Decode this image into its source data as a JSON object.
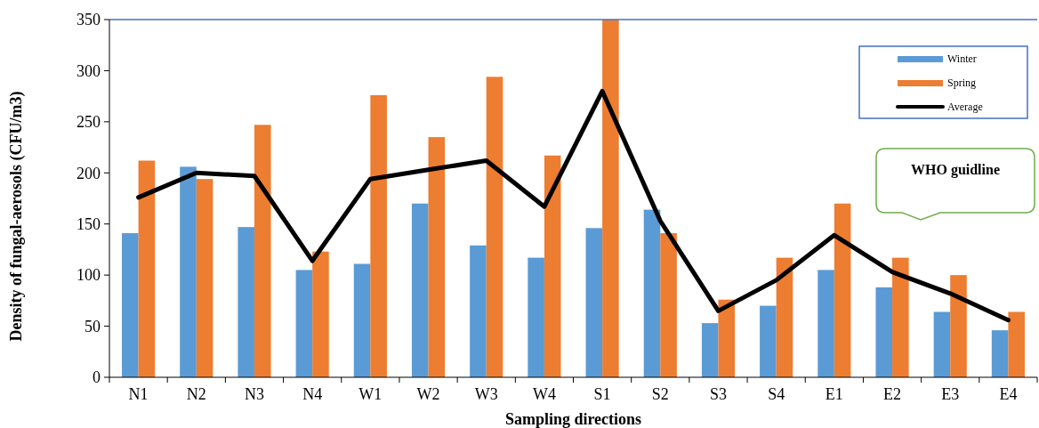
{
  "chart_data": {
    "type": "bar",
    "xlabel": "Sampling directions",
    "ylabel": "Density of fungal-aerosols (CFU/m3)",
    "categories": [
      "N1",
      "N2",
      "N3",
      "N4",
      "W1",
      "W2",
      "W3",
      "W4",
      "S1",
      "S2",
      "S3",
      "S4",
      "E1",
      "E2",
      "E3",
      "E4"
    ],
    "series": [
      {
        "name": "Winter",
        "color": "#5b9bd5",
        "values": [
          141,
          206,
          147,
          105,
          111,
          170,
          129,
          117,
          146,
          164,
          53,
          70,
          105,
          88,
          64,
          46
        ]
      },
      {
        "name": "Spring",
        "color": "#ed7d31",
        "values": [
          212,
          194,
          247,
          123,
          276,
          235,
          294,
          217,
          350,
          141,
          76,
          117,
          170,
          117,
          100,
          64
        ]
      },
      {
        "name": "Average",
        "type": "line",
        "color": "#000000",
        "values": [
          176,
          200,
          197,
          114,
          194,
          203,
          212,
          167,
          280,
          153,
          65,
          95,
          139,
          103,
          82,
          56
        ]
      }
    ],
    "ylim": [
      0,
      350
    ],
    "yticks": [
      0,
      50,
      100,
      150,
      200,
      250,
      300,
      350
    ],
    "grid": false,
    "legend": "top right",
    "ref_lines": [
      {
        "axis": "y",
        "value": 350,
        "color": "#4472c4"
      }
    ],
    "annotations": [
      "WHO guidline"
    ]
  }
}
